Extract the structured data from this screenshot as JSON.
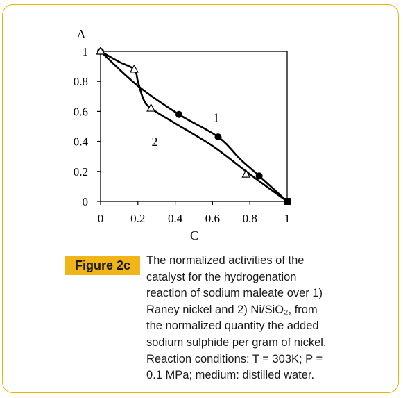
{
  "figure": {
    "label": "Figure 2c",
    "caption_lines": [
      "The normalized activities of the",
      "catalyst for the hydrogenation",
      "reaction of sodium maleate over 1)",
      "Raney nickel and 2) Ni/SiO₂, from",
      "the normalized quantity the added",
      "sodium sulphide per gram of nickel.",
      "Reaction conditions: T = 303K; P =",
      "0.1 MPa; medium: distilled water."
    ]
  },
  "chart_data": {
    "type": "line",
    "xlabel": "C",
    "ylabel": "A",
    "xlim": [
      0,
      1
    ],
    "ylim": [
      0,
      1
    ],
    "x_ticks": [
      "0",
      "0.2",
      "0.4",
      "0.6",
      "0.8",
      "1"
    ],
    "y_ticks": [
      "0",
      "0.2",
      "0.4",
      "0.6",
      "0.8",
      "1"
    ],
    "grid": false,
    "legend": "none",
    "series": [
      {
        "name": "1",
        "marker": "filled-circle",
        "color": "#000000",
        "points": [
          [
            0,
            1
          ],
          [
            0.42,
            0.58
          ],
          [
            0.63,
            0.43
          ],
          [
            0.85,
            0.17
          ],
          [
            1,
            0
          ]
        ],
        "curve": [
          [
            0,
            1
          ],
          [
            0.2,
            0.77
          ],
          [
            0.42,
            0.58
          ],
          [
            0.63,
            0.43
          ],
          [
            0.75,
            0.28
          ],
          [
            0.85,
            0.17
          ],
          [
            1,
            0
          ]
        ]
      },
      {
        "name": "2",
        "marker": "open-triangle",
        "color": "#000000",
        "points": [
          [
            0,
            1
          ],
          [
            0.18,
            0.88
          ],
          [
            0.27,
            0.62
          ],
          [
            0.78,
            0.18
          ],
          [
            1,
            0
          ]
        ],
        "curve": [
          [
            0,
            1
          ],
          [
            0.1,
            0.93
          ],
          [
            0.18,
            0.88
          ],
          [
            0.2,
            0.8
          ],
          [
            0.23,
            0.68
          ],
          [
            0.27,
            0.62
          ],
          [
            0.4,
            0.52
          ],
          [
            0.6,
            0.37
          ],
          [
            0.78,
            0.2
          ],
          [
            0.9,
            0.09
          ],
          [
            1,
            0
          ]
        ]
      }
    ],
    "annotations": [
      {
        "text": "1",
        "x": 0.62,
        "y": 0.53
      },
      {
        "text": "2",
        "x": 0.29,
        "y": 0.37
      }
    ]
  }
}
